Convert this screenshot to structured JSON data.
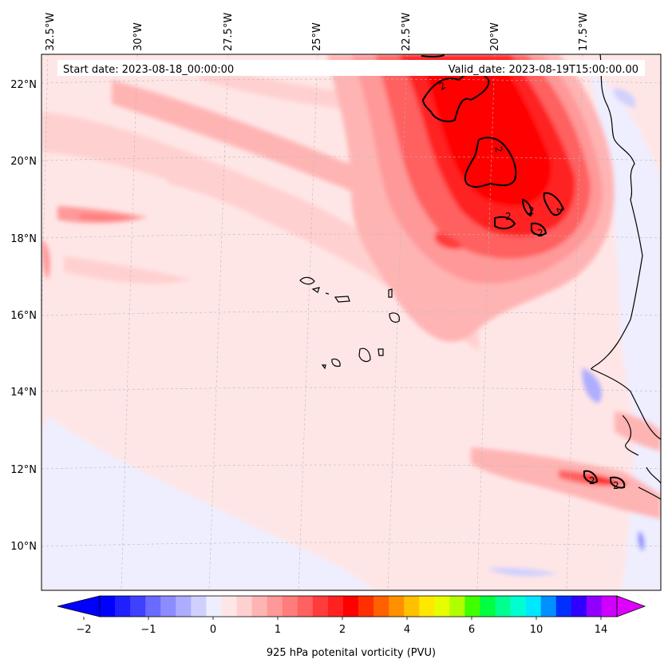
{
  "map": {
    "start_date": "Start date: 2023-08-18_00:00:00",
    "valid_date": "Valid_date: 2023-08-19T15:00:00.00",
    "lon_labels": [
      "32.5°W",
      "30°W",
      "27.5°W",
      "25°W",
      "22.5°W",
      "20°W",
      "17.5°W"
    ],
    "lat_labels": [
      "22°N",
      "20°N",
      "18°N",
      "16°N",
      "14°N",
      "12°N",
      "10°N"
    ],
    "contour_label": "2",
    "variable": "925 hPa potential vorticity",
    "units": "PVU"
  },
  "colorbar": {
    "label": "925 hPa potenital vorticity (PVU)",
    "tick_labels": [
      "−2",
      "−1",
      "0",
      "1",
      "2",
      "4",
      "6",
      "10",
      "14"
    ],
    "colors": [
      "#0000ff",
      "#2020ff",
      "#4040ff",
      "#6a6aff",
      "#8c8cff",
      "#adadff",
      "#d0d0ff",
      "#eeeeff",
      "#ffe6e6",
      "#ffd0d0",
      "#ffb4b4",
      "#ff9898",
      "#ff7c7c",
      "#ff6060",
      "#ff3c3c",
      "#ff2020",
      "#ff0000",
      "#ff3000",
      "#ff6000",
      "#ff9000",
      "#ffc000",
      "#ffe800",
      "#e6ff00",
      "#b0ff00",
      "#40ff00",
      "#00ff40",
      "#00ff90",
      "#00ffd0",
      "#00e8ff",
      "#0090ff",
      "#0030ff",
      "#3000ff",
      "#9000ff",
      "#d000ff"
    ]
  }
}
